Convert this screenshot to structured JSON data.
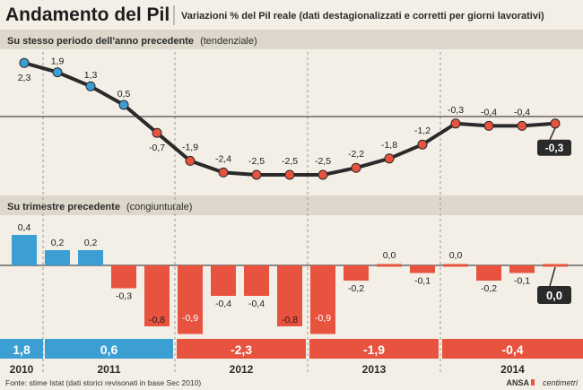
{
  "header": {
    "title": "Andamento del Pil",
    "subtitle": "Variazioni % del Pil reale (dati destagionalizzati e corretti per giorni lavorativi)"
  },
  "sections": {
    "top_label": "Su stesso periodo dell'anno precedente",
    "top_note": "(tendenziale)",
    "bottom_label": "Su trimestre precedente",
    "bottom_note": "(congiunturale)"
  },
  "chart_data": [
    {
      "type": "line",
      "title": "Su stesso periodo dell'anno precedente (tendenziale)",
      "x": [
        "2010 Q4",
        "2011 Q1",
        "2011 Q2",
        "2011 Q3",
        "2011 Q4",
        "2012 Q1",
        "2012 Q2",
        "2012 Q3",
        "2012 Q4",
        "2013 Q1",
        "2013 Q2",
        "2013 Q3",
        "2013 Q4",
        "2014 Q1",
        "2014 Q2",
        "2014 Q3",
        "2014 Q4"
      ],
      "values": [
        2.3,
        1.9,
        1.3,
        0.5,
        -0.7,
        -1.9,
        -2.4,
        -2.5,
        -2.5,
        -2.5,
        -2.2,
        -1.8,
        -1.2,
        -0.3,
        -0.4,
        -0.4,
        -0.3
      ],
      "labels": [
        "2,3",
        "1,9",
        "1,3",
        "0,5",
        "-0,7",
        "-1,9",
        "-2,4",
        "-2,5",
        "-2,5",
        "-2,5",
        "-2,2",
        "-1,8",
        "-1,2",
        "-0,3",
        "-0,4",
        "-0,4",
        "-0,3"
      ],
      "ylim": [
        -3,
        2.6
      ],
      "colors": {
        "positive": "#3b9fd3",
        "negative": "#e8533f",
        "line": "#2a2a2a"
      }
    },
    {
      "type": "bar",
      "title": "Su trimestre precedente (congiunturale)",
      "x": [
        "2010 Q4",
        "2011 Q1",
        "2011 Q2",
        "2011 Q3",
        "2011 Q4",
        "2012 Q1",
        "2012 Q2",
        "2012 Q3",
        "2012 Q4",
        "2013 Q1",
        "2013 Q2",
        "2013 Q3",
        "2013 Q4",
        "2014 Q1",
        "2014 Q2",
        "2014 Q3",
        "2014 Q4"
      ],
      "values": [
        0.4,
        0.2,
        0.2,
        -0.3,
        -0.8,
        -0.9,
        -0.4,
        -0.4,
        -0.8,
        -0.9,
        -0.2,
        0.0,
        -0.1,
        0.0,
        -0.2,
        -0.1,
        0.0
      ],
      "labels": [
        "0,4",
        "0,2",
        "0,2",
        "-0,3",
        "-0,8",
        "-0,9",
        "-0,4",
        "-0,4",
        "-0,8",
        "-0,9",
        "-0,2",
        "0,0",
        "-0,1",
        "0,0",
        "-0,2",
        "-0,1",
        "0,0"
      ],
      "ylim": [
        -1.0,
        0.45
      ],
      "colors": {
        "positive": "#3b9fd3",
        "negative": "#e8533f"
      }
    }
  ],
  "annual": [
    {
      "year": "2010",
      "value": "1,8",
      "color": "#3b9fd3"
    },
    {
      "year": "2011",
      "value": "0,6",
      "color": "#3b9fd3"
    },
    {
      "year": "2012",
      "value": "-2,3",
      "color": "#e8533f"
    },
    {
      "year": "2013",
      "value": "-1,9",
      "color": "#e8533f"
    },
    {
      "year": "2014",
      "value": "-0,4",
      "color": "#e8533f"
    }
  ],
  "footer": {
    "source": "Fonte: stime Istat (dati storici revisonati in base Sec 2010)",
    "credit_ansa": "ANSA",
    "credit_centimetri": "centimetri"
  }
}
